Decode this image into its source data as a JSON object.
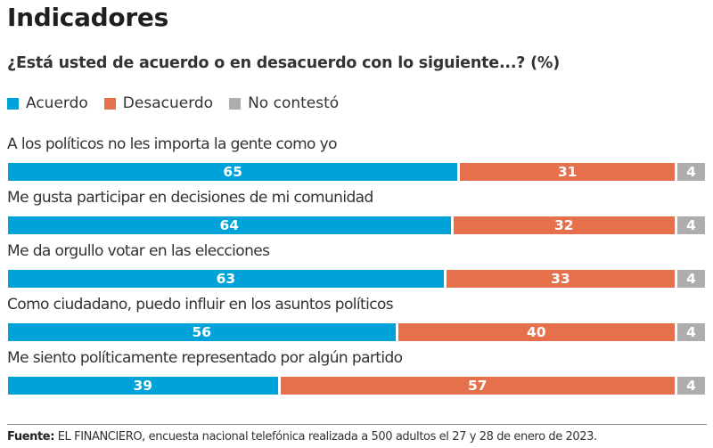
{
  "header": {
    "title": "Indicadores",
    "subtitle": "¿Está usted de acuerdo o en desacuerdo con lo siguiente...? (%)"
  },
  "legend": [
    {
      "label": "Acuerdo",
      "color": "#00a3d9"
    },
    {
      "label": "Desacuerdo",
      "color": "#e5704b"
    },
    {
      "label": "No contestó",
      "color": "#adadad"
    }
  ],
  "chart_data": {
    "type": "bar",
    "orientation": "horizontal",
    "stacked": true,
    "title": "Indicadores",
    "subtitle": "¿Está usted de acuerdo o en desacuerdo con lo siguiente...? (%)",
    "xlabel": "",
    "ylabel": "",
    "xlim": [
      0,
      100
    ],
    "grid": false,
    "legend_position": "top-left",
    "categories": [
      "A los políticos no les importa la gente como yo",
      "Me gusta participar en decisiones de mi comunidad",
      "Me da orgullo votar en las elecciones",
      "Como ciudadano, puedo influir en los asuntos políticos",
      "Me siento políticamente representado por algún partido"
    ],
    "series": [
      {
        "name": "Acuerdo",
        "color": "#00a3d9",
        "values": [
          65,
          64,
          63,
          56,
          39
        ]
      },
      {
        "name": "Desacuerdo",
        "color": "#e5704b",
        "values": [
          31,
          32,
          33,
          40,
          57
        ]
      },
      {
        "name": "No contestó",
        "color": "#adadad",
        "values": [
          4,
          4,
          4,
          4,
          4
        ]
      }
    ]
  },
  "footer": {
    "source_label": "Fuente:",
    "source_text": " EL FINANCIERO, encuesta nacional telefónica realizada a 500 adultos el 27 y 28 de enero de 2023."
  }
}
